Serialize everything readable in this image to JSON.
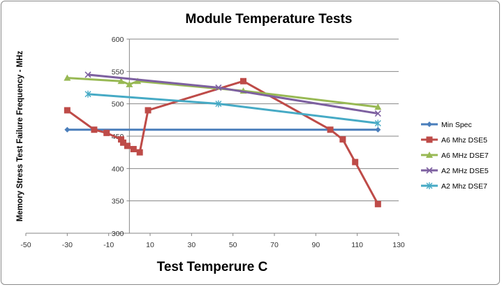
{
  "chart_data": {
    "type": "line",
    "title": "Module Temperature Tests",
    "xlabel": "Test Temperure C",
    "ylabel": "Memory Stress Test Failure Frequency - MHz",
    "xlim": [
      -50,
      130
    ],
    "ylim": [
      300,
      600
    ],
    "xticks": [
      -50,
      -30,
      -10,
      10,
      30,
      50,
      70,
      90,
      110,
      130
    ],
    "yticks": [
      300,
      350,
      400,
      450,
      500,
      550,
      600
    ],
    "grid": "horizontal",
    "legend_position": "right",
    "series": [
      {
        "name": "Min Spec",
        "color": "#4a7ebb",
        "marker": "diamond",
        "x": [
          -30,
          120
        ],
        "y": [
          460,
          460
        ]
      },
      {
        "name": "A6 Mhz DSE5",
        "color": "#be4b48",
        "marker": "square",
        "x": [
          -30,
          -17,
          -11,
          -4,
          -3,
          -1,
          2,
          5,
          9,
          55,
          97,
          103,
          109,
          120
        ],
        "y": [
          490,
          460,
          455,
          445,
          440,
          435,
          430,
          425,
          490,
          535,
          460,
          445,
          410,
          345
        ]
      },
      {
        "name": "A6 MHz DSE7",
        "color": "#98b954",
        "marker": "triangle",
        "x": [
          -30,
          -4,
          0,
          4,
          55,
          120
        ],
        "y": [
          540,
          535,
          530,
          535,
          520,
          495
        ]
      },
      {
        "name": "A2 MHz DSE5",
        "color": "#7d60a0",
        "marker": "x",
        "x": [
          -20,
          43,
          120
        ],
        "y": [
          545,
          525,
          485
        ]
      },
      {
        "name": "A2 Mhz DSE7",
        "color": "#46aac5",
        "marker": "star",
        "x": [
          -20,
          43,
          120
        ],
        "y": [
          515,
          500,
          470
        ]
      }
    ]
  }
}
